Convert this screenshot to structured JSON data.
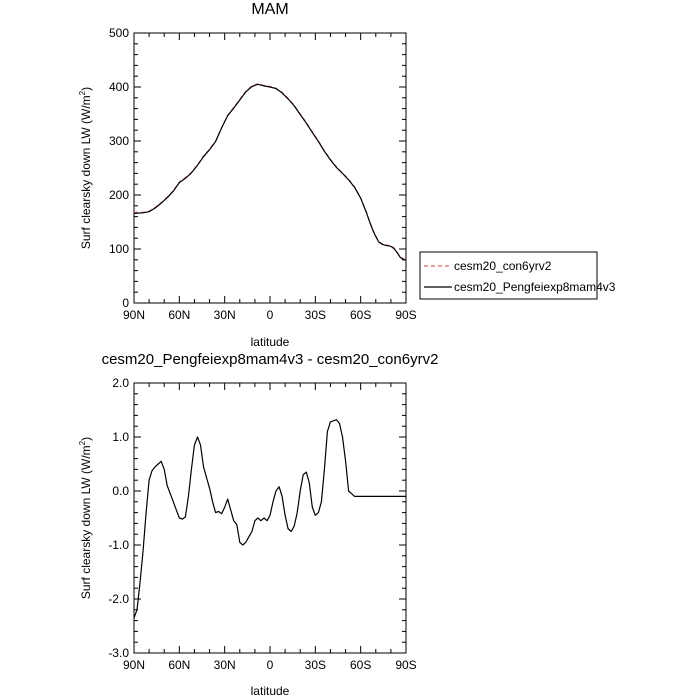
{
  "chart_data": [
    {
      "type": "line",
      "title": "MAM",
      "xlabel": "latitude",
      "ylabel_main": "Surf clearsky down LW (W/m",
      "ylabel_sup": "2",
      "ylabel_close": ")",
      "xlim": [
        90,
        -90
      ],
      "ylim": [
        0,
        500
      ],
      "x_ticks": [
        90,
        60,
        30,
        0,
        -30,
        -60,
        -90
      ],
      "x_tick_labels": [
        "90N",
        "60N",
        "30N",
        "0",
        "30S",
        "60S",
        "90S"
      ],
      "y_ticks": [
        0,
        100,
        200,
        300,
        400,
        500
      ],
      "y_tick_labels": [
        "0",
        "100",
        "200",
        "300",
        "400",
        "500"
      ],
      "legend": {
        "placement": "right",
        "entries": [
          "cesm20_con6yrv2",
          "cesm20_Pengfeiexp8mam4v3"
        ]
      },
      "series": [
        {
          "name": "cesm20_con6yrv2",
          "color": "#e06666",
          "style": "dashed",
          "x": [
            90,
            84,
            80,
            76,
            72,
            68,
            64,
            60,
            56,
            52,
            48,
            44,
            40,
            36,
            32,
            28,
            24,
            20,
            16,
            12,
            8,
            4,
            0,
            -4,
            -8,
            -12,
            -16,
            -20,
            -24,
            -28,
            -32,
            -36,
            -40,
            -44,
            -48,
            -52,
            -56,
            -60,
            -64,
            -66,
            -68,
            -70,
            -72,
            -74,
            -76,
            -78,
            -80,
            -82,
            -84,
            -86,
            -88,
            -90
          ],
          "y": [
            168,
            168,
            170,
            177,
            186,
            196,
            208,
            224,
            232,
            242,
            256,
            272,
            285,
            300,
            325,
            348,
            362,
            377,
            392,
            402,
            406,
            403,
            401,
            398,
            390,
            379,
            366,
            350,
            334,
            317,
            300,
            282,
            266,
            252,
            241,
            229,
            215,
            195,
            167,
            151,
            136,
            124,
            114,
            110,
            108,
            107,
            106,
            102,
            95,
            86,
            82,
            80
          ]
        },
        {
          "name": "cesm20_Pengfeiexp8mam4v3",
          "color": "#000000",
          "style": "solid",
          "x": [
            90,
            84,
            80,
            76,
            72,
            68,
            64,
            60,
            56,
            52,
            48,
            44,
            40,
            36,
            32,
            28,
            24,
            20,
            16,
            12,
            8,
            4,
            0,
            -4,
            -8,
            -12,
            -16,
            -20,
            -24,
            -28,
            -32,
            -36,
            -40,
            -44,
            -48,
            -52,
            -56,
            -60,
            -64,
            -66,
            -68,
            -70,
            -72,
            -74,
            -76,
            -78,
            -80,
            -82,
            -84,
            -86,
            -88,
            -90
          ],
          "y": [
            166,
            167,
            169,
            176,
            185,
            195,
            207,
            223,
            231,
            241,
            255,
            271,
            284,
            299,
            324,
            347,
            361,
            376,
            391,
            401,
            405,
            402,
            400,
            397,
            389,
            378,
            365,
            349,
            333,
            316,
            299,
            281,
            265,
            251,
            240,
            228,
            214,
            194,
            166,
            150,
            135,
            123,
            113,
            109,
            107,
            106,
            105,
            101,
            94,
            85,
            81,
            79
          ]
        }
      ]
    },
    {
      "type": "line",
      "title": "cesm20_Pengfeiexp8mam4v3 - cesm20_con6yrv2",
      "xlabel": "latitude",
      "ylabel_main": "Surf clearsky down LW (W/m",
      "ylabel_sup": "2",
      "ylabel_close": ")",
      "xlim": [
        90,
        -90
      ],
      "ylim": [
        -3.0,
        2.0
      ],
      "x_ticks": [
        90,
        60,
        30,
        0,
        -30,
        -60,
        -90
      ],
      "x_tick_labels": [
        "90N",
        "60N",
        "30N",
        "0",
        "30S",
        "60S",
        "90S"
      ],
      "y_ticks": [
        -3.0,
        -2.0,
        -1.0,
        0.0,
        1.0,
        2.0
      ],
      "y_tick_labels": [
        "-3.0",
        "-2.0",
        "-1.0",
        "0.0",
        "1.0",
        "2.0"
      ],
      "series": [
        {
          "name": "cesm20_Pengfeiexp8mam4v3 - cesm20_con6yrv2",
          "color": "#000000",
          "style": "solid",
          "x": [
            90,
            88,
            86,
            84,
            82,
            80,
            78,
            76,
            74,
            72,
            70,
            68,
            66,
            64,
            62,
            60,
            58,
            56,
            54,
            52,
            50,
            48,
            46,
            44,
            42,
            40,
            38,
            36,
            34,
            32,
            30,
            28,
            26,
            24,
            22,
            20,
            18,
            16,
            14,
            12,
            10,
            8,
            6,
            4,
            2,
            0,
            -2,
            -4,
            -6,
            -8,
            -10,
            -12,
            -14,
            -16,
            -18,
            -20,
            -22,
            -24,
            -26,
            -28,
            -30,
            -32,
            -34,
            -36,
            -38,
            -40,
            -42,
            -44,
            -46,
            -48,
            -50,
            -52,
            -54,
            -56,
            -58,
            -60,
            -62,
            -64,
            -66,
            -68,
            -70,
            -72,
            -74,
            -76,
            -78,
            -80,
            -82,
            -84,
            -86,
            -88,
            -90
          ],
          "y": [
            -2.35,
            -2.2,
            -1.7,
            -1.1,
            -0.4,
            0.2,
            0.38,
            0.45,
            0.5,
            0.55,
            0.4,
            0.1,
            -0.05,
            -0.2,
            -0.35,
            -0.5,
            -0.52,
            -0.48,
            -0.1,
            0.4,
            0.85,
            1.0,
            0.85,
            0.45,
            0.25,
            0.05,
            -0.2,
            -0.4,
            -0.38,
            -0.42,
            -0.3,
            -0.15,
            -0.35,
            -0.55,
            -0.62,
            -0.95,
            -1.0,
            -0.95,
            -0.85,
            -0.75,
            -0.55,
            -0.5,
            -0.55,
            -0.5,
            -0.55,
            -0.45,
            -0.2,
            0.0,
            0.08,
            -0.1,
            -0.45,
            -0.7,
            -0.75,
            -0.65,
            -0.4,
            0.0,
            0.3,
            0.35,
            0.15,
            -0.3,
            -0.45,
            -0.4,
            -0.2,
            0.4,
            1.1,
            1.28,
            1.3,
            1.32,
            1.25,
            1.0,
            0.55,
            0.0,
            -0.05,
            -0.1,
            -0.1,
            -0.1,
            -0.1,
            -0.1,
            -0.1,
            -0.1,
            -0.1,
            -0.1,
            -0.1,
            -0.1,
            -0.1,
            -0.1,
            -0.1,
            -0.1,
            -0.1,
            -0.1,
            -0.1
          ]
        }
      ]
    }
  ]
}
